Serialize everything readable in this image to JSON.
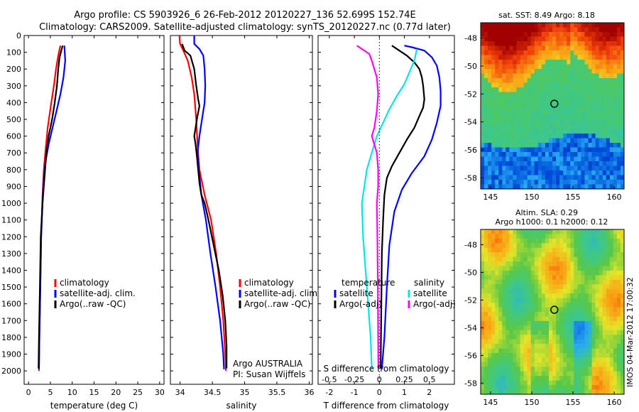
{
  "header": {
    "line1": "Argo profile: CS 5903926_6 26-Feb-2012 20120227_136 52.699S 152.74E",
    "line2": "Climatology: CARS2009. Satellite-adjusted climatology: synTS_20120227.nc (0.77d later)"
  },
  "colors": {
    "red": "#ff0000",
    "blue": "#0000ff",
    "black": "#000000",
    "cyan": "#00e5e5",
    "magenta": "#ff00ff"
  },
  "chart_data": [
    {
      "type": "line",
      "id": "temperature",
      "xlabel": "temperature (deg C)",
      "xlim": [
        -1,
        31
      ],
      "ylim": [
        0,
        2080
      ],
      "xticks": [
        0,
        5,
        10,
        15,
        20,
        25,
        30
      ],
      "yticks": [
        0,
        100,
        200,
        300,
        400,
        500,
        600,
        700,
        800,
        900,
        1000,
        1100,
        1200,
        1300,
        1400,
        1500,
        1600,
        1700,
        1800,
        1900,
        2000
      ],
      "legend": [
        "climatology",
        "satellite-adj. clim.",
        "Argo(..raw -QC)"
      ],
      "series": [
        {
          "name": "climatology",
          "color": "red",
          "points": [
            [
              7.3,
              60
            ],
            [
              6.8,
              120
            ],
            [
              6.3,
              200
            ],
            [
              5.8,
              300
            ],
            [
              5.1,
              420
            ],
            [
              4.4,
              550
            ],
            [
              3.9,
              680
            ],
            [
              3.5,
              800
            ],
            [
              3.2,
              950
            ],
            [
              2.9,
              1200
            ],
            [
              2.7,
              1500
            ],
            [
              2.5,
              1800
            ],
            [
              2.4,
              2000
            ]
          ]
        },
        {
          "name": "satellite-adj. clim.",
          "color": "blue",
          "points": [
            [
              8.2,
              60
            ],
            [
              8.4,
              150
            ],
            [
              8.0,
              250
            ],
            [
              7.3,
              350
            ],
            [
              6.4,
              450
            ],
            [
              5.5,
              550
            ],
            [
              4.6,
              650
            ],
            [
              3.9,
              750
            ],
            [
              3.5,
              850
            ],
            [
              3.2,
              1000
            ],
            [
              2.9,
              1200
            ],
            [
              2.7,
              1500
            ],
            [
              2.5,
              1800
            ],
            [
              2.4,
              1990
            ]
          ]
        },
        {
          "name": "Argo(..raw -QC)",
          "color": "black",
          "points": [
            [
              7.8,
              60
            ],
            [
              7.4,
              100
            ],
            [
              7.1,
              130
            ],
            [
              6.8,
              200
            ],
            [
              6.5,
              300
            ],
            [
              6.0,
              400
            ],
            [
              5.4,
              500
            ],
            [
              4.6,
              600
            ],
            [
              4.1,
              700
            ],
            [
              3.8,
              800
            ],
            [
              3.5,
              900
            ],
            [
              3.2,
              1000
            ],
            [
              2.8,
              1200
            ],
            [
              2.6,
              1500
            ],
            [
              2.4,
              1800
            ],
            [
              2.3,
              1985
            ]
          ]
        }
      ]
    },
    {
      "type": "line",
      "id": "salinity",
      "xlabel": "salinity",
      "xlim": [
        33.85,
        36.05
      ],
      "ylim": [
        0,
        2080
      ],
      "xticks": [
        34,
        34.5,
        35,
        35.5,
        36
      ],
      "legend": [
        "climatology",
        "satellite-adj. clim.",
        "Argo(..raw -QC)"
      ],
      "annotation": [
        "Argo AUSTRALIA",
        "PI: Susan Wijffels"
      ],
      "series": [
        {
          "name": "climatology",
          "color": "red",
          "points": [
            [
              33.99,
              0
            ],
            [
              34.0,
              50
            ],
            [
              34.05,
              90
            ],
            [
              34.12,
              150
            ],
            [
              34.18,
              250
            ],
            [
              34.22,
              350
            ],
            [
              34.25,
              500
            ],
            [
              34.27,
              650
            ],
            [
              34.3,
              800
            ],
            [
              34.38,
              950
            ],
            [
              34.48,
              1100
            ],
            [
              34.56,
              1300
            ],
            [
              34.62,
              1500
            ],
            [
              34.67,
              1700
            ],
            [
              34.7,
              1900
            ],
            [
              34.71,
              2000
            ]
          ]
        },
        {
          "name": "satellite-adj. clim.",
          "color": "blue",
          "points": [
            [
              34.22,
              0
            ],
            [
              34.22,
              50
            ],
            [
              34.3,
              80
            ],
            [
              34.36,
              120
            ],
            [
              34.38,
              200
            ],
            [
              34.39,
              300
            ],
            [
              34.38,
              400
            ],
            [
              34.34,
              500
            ],
            [
              34.3,
              600
            ],
            [
              34.27,
              700
            ],
            [
              34.29,
              800
            ],
            [
              34.33,
              950
            ],
            [
              34.4,
              1100
            ],
            [
              34.47,
              1300
            ],
            [
              34.55,
              1500
            ],
            [
              34.62,
              1700
            ],
            [
              34.67,
              1900
            ],
            [
              34.68,
              1990
            ]
          ]
        },
        {
          "name": "Argo(..raw -QC)",
          "color": "black",
          "points": [
            [
              34.03,
              50
            ],
            [
              34.07,
              90
            ],
            [
              34.16,
              120
            ],
            [
              34.22,
              200
            ],
            [
              34.25,
              300
            ],
            [
              34.28,
              380
            ],
            [
              34.3,
              420
            ],
            [
              34.28,
              460
            ],
            [
              34.26,
              500
            ],
            [
              34.24,
              550
            ],
            [
              34.22,
              600
            ],
            [
              34.24,
              650
            ],
            [
              34.26,
              720
            ],
            [
              34.28,
              800
            ],
            [
              34.3,
              880
            ],
            [
              34.33,
              950
            ],
            [
              34.38,
              1000
            ],
            [
              34.44,
              1100
            ],
            [
              34.52,
              1250
            ],
            [
              34.6,
              1400
            ],
            [
              34.66,
              1550
            ],
            [
              34.7,
              1700
            ],
            [
              34.72,
              1850
            ],
            [
              34.72,
              1985
            ]
          ]
        }
      ]
    },
    {
      "type": "line",
      "id": "difference",
      "xlabel_top": "S difference from climatology",
      "xlabel": "T difference from climatology",
      "xlim": [
        -2.45,
        3.0
      ],
      "ylim": [
        0,
        2080
      ],
      "xticks": [
        -2,
        -1,
        0,
        1,
        2
      ],
      "sticks": [
        {
          "label": "-0.5",
          "pos": -2
        },
        {
          "label": "-0.25",
          "pos": -1
        },
        {
          "label": "0",
          "pos": 0
        },
        {
          "label": "0.25",
          "pos": 1
        },
        {
          "label": "0.5",
          "pos": 2
        }
      ],
      "legend_left": {
        "title": "temperature",
        "items": [
          "satellite",
          "Argo(-adj)"
        ]
      },
      "legend_right": {
        "title": "salinity",
        "items": [
          "satellite",
          "Argo(-adj)"
        ]
      },
      "series": [
        {
          "name": "temperature satellite",
          "color": "blue",
          "points": [
            [
              1.0,
              60
            ],
            [
              1.3,
              70
            ],
            [
              1.8,
              90
            ],
            [
              2.1,
              130
            ],
            [
              2.3,
              180
            ],
            [
              2.4,
              250
            ],
            [
              2.45,
              330
            ],
            [
              2.45,
              420
            ],
            [
              2.3,
              520
            ],
            [
              2.1,
              620
            ],
            [
              1.8,
              720
            ],
            [
              1.3,
              820
            ],
            [
              0.9,
              920
            ],
            [
              0.6,
              1050
            ],
            [
              0.4,
              1250
            ],
            [
              0.3,
              1500
            ],
            [
              0.2,
              1800
            ],
            [
              0.1,
              1990
            ]
          ]
        },
        {
          "name": "temperature Argo(-adj)",
          "color": "black",
          "points": [
            [
              0.5,
              60
            ],
            [
              0.7,
              80
            ],
            [
              1.1,
              120
            ],
            [
              1.4,
              160
            ],
            [
              1.6,
              200
            ],
            [
              1.7,
              250
            ],
            [
              1.75,
              300
            ],
            [
              1.8,
              380
            ],
            [
              1.75,
              430
            ],
            [
              1.6,
              480
            ],
            [
              1.4,
              550
            ],
            [
              1.1,
              620
            ],
            [
              0.8,
              700
            ],
            [
              0.5,
              780
            ],
            [
              0.3,
              850
            ],
            [
              0.2,
              950
            ],
            [
              0.15,
              1100
            ],
            [
              0.1,
              1300
            ],
            [
              0.08,
              1600
            ],
            [
              0.05,
              1985
            ]
          ]
        },
        {
          "name": "salinity satellite",
          "color": "cyan",
          "points": [
            [
              1.5,
              80
            ],
            [
              1.4,
              150
            ],
            [
              1.2,
              220
            ],
            [
              1.0,
              290
            ],
            [
              0.7,
              360
            ],
            [
              0.4,
              440
            ],
            [
              0.15,
              520
            ],
            [
              -0.1,
              600
            ],
            [
              -0.3,
              700
            ],
            [
              -0.5,
              800
            ],
            [
              -0.6,
              900
            ],
            [
              -0.7,
              1000
            ],
            [
              -0.65,
              1200
            ],
            [
              -0.55,
              1400
            ],
            [
              -0.45,
              1600
            ],
            [
              -0.35,
              1800
            ],
            [
              -0.3,
              1990
            ]
          ]
        },
        {
          "name": "salinity Argo(-adj)",
          "color": "magenta",
          "points": [
            [
              -0.9,
              60
            ],
            [
              -0.6,
              90
            ],
            [
              -0.4,
              110
            ],
            [
              -0.3,
              150
            ],
            [
              -0.1,
              250
            ],
            [
              -0.05,
              350
            ],
            [
              -0.1,
              450
            ],
            [
              -0.2,
              550
            ],
            [
              -0.3,
              600
            ],
            [
              -0.2,
              650
            ],
            [
              -0.1,
              700
            ],
            [
              -0.05,
              800
            ],
            [
              -0.05,
              900
            ],
            [
              -0.1,
              1000
            ],
            [
              -0.08,
              1200
            ],
            [
              -0.06,
              1500
            ],
            [
              -0.05,
              1800
            ],
            [
              -0.04,
              1985
            ]
          ]
        }
      ]
    },
    {
      "type": "heatmap",
      "id": "sst_map",
      "title": "sat. SST: 8.49 Argo: 8.18",
      "xticks": [
        145,
        150,
        155,
        160
      ],
      "yticks": [
        -48,
        -50,
        -52,
        -54,
        -56,
        -58
      ],
      "xlim": [
        143.8,
        161.2
      ],
      "ylim": [
        -58.8,
        -46.9
      ],
      "marker": [
        152.74,
        -52.699
      ]
    },
    {
      "type": "heatmap",
      "id": "sla_map",
      "title": "Altim. SLA: 0.29",
      "subtitle": "Argo h1000: 0.1 h2000: 0.12",
      "xticks": [
        145,
        150,
        155,
        160
      ],
      "yticks": [
        -48,
        -50,
        -52,
        -54,
        -56,
        -58
      ],
      "xlim": [
        143.8,
        161.2
      ],
      "ylim": [
        -58.8,
        -46.9
      ],
      "marker": [
        152.74,
        -52.699
      ]
    }
  ],
  "footer_stamp": "IMOS 04-Mar-2012 17:00:32"
}
